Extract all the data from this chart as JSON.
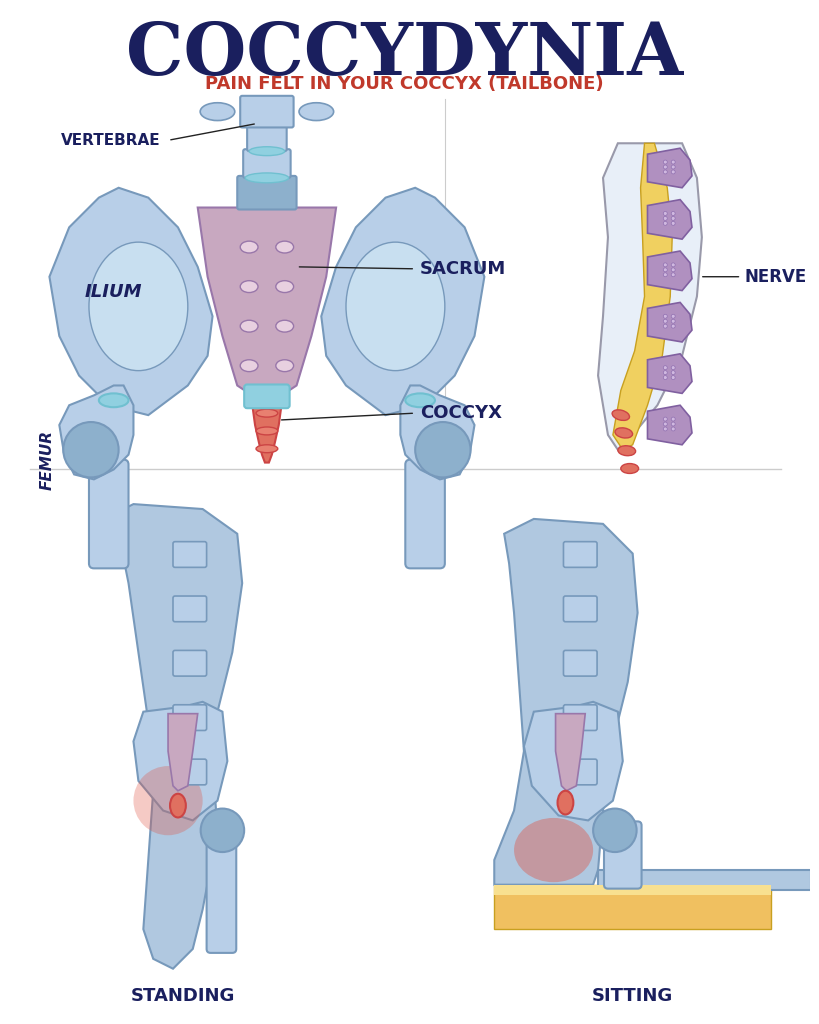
{
  "title": "COCCYDYNIA",
  "subtitle": "PAIN FELT IN YOUR COCCYX (TAILBONE)",
  "title_color": "#1a1f5e",
  "subtitle_color": "#c0392b",
  "background_color": "#ffffff",
  "labels": {
    "vertebrae": "VERTEBRAE",
    "ilium": "ILIUM",
    "sacrum": "SACRUM",
    "coccyx": "COCCYX",
    "femur": "FEMUR",
    "nerve": "NERVE",
    "standing": "STANDING",
    "sitting": "SITTING"
  },
  "label_color": "#1a1f5e",
  "bone_light_blue": "#b8cfe8",
  "bone_blue": "#a0bdd8",
  "bone_medium_blue": "#8db0cc",
  "bone_highlight": "#c8dff0",
  "sacrum_color": "#c8a8c0",
  "sacrum_light": "#d4b8cc",
  "coccyx_color": "#e07060",
  "cartilage_color": "#90d0e0",
  "nerve_yellow": "#f0d060",
  "nerve_purple": "#b090c0",
  "pain_red": "#e05040",
  "pain_pink": "#e87878",
  "sitting_surface": "#f0c060",
  "body_skin": "#e8c8b8",
  "body_blue": "#b0c8e0"
}
